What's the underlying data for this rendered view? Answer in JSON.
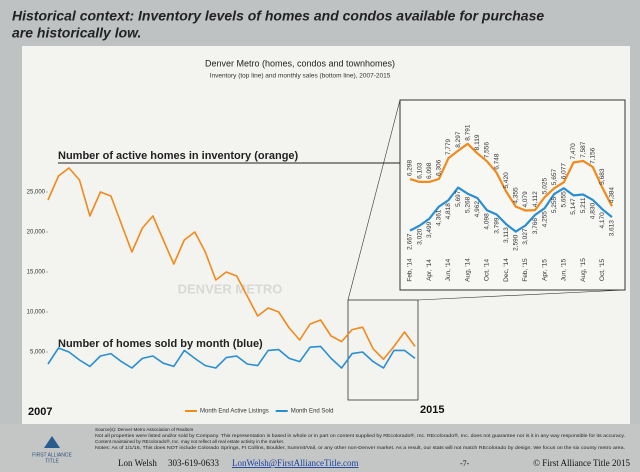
{
  "header": {
    "title": [
      "Historical context: Inventory levels of homes and condos available for purchase",
      "are historically low."
    ]
  },
  "chart_title": "Denver Metro (homes, condos and townhomes)",
  "chart_subtitle": "Inventory (top line) and monthly sales (bottom line), 2007-2015",
  "watermark": "DENVER METRO",
  "chart_data": [
    {
      "type": "line",
      "annotations": [
        "Number of active homes in inventory (orange)",
        "Number of homes sold by month (blue)"
      ],
      "year_labels": [
        "2007",
        "2015"
      ],
      "x": [
        2007,
        2007.25,
        2007.5,
        2007.75,
        2008,
        2008.25,
        2008.5,
        2008.75,
        2009,
        2009.25,
        2009.5,
        2009.75,
        2010,
        2010.25,
        2010.5,
        2010.75,
        2011,
        2011.25,
        2011.5,
        2011.75,
        2012,
        2012.25,
        2012.5,
        2012.75,
        2013,
        2013.25,
        2013.5,
        2013.75,
        2014,
        2014.25,
        2014.5,
        2014.75,
        2015,
        2015.25,
        2015.5,
        2015.75
      ],
      "xlim": [
        2007,
        2015.75
      ],
      "ylim": [
        0,
        28000
      ],
      "yticks": [
        {
          "value": 5000,
          "label": "5,000"
        },
        {
          "value": 10000,
          "label": "10,000"
        },
        {
          "value": 15000,
          "label": "15,000"
        },
        {
          "value": 20000,
          "label": "20,000"
        },
        {
          "value": 25000,
          "label": "25,000"
        }
      ],
      "legend": "bottom",
      "series": [
        {
          "name": "Month End Active Listings",
          "color": "#f08a1c",
          "values": [
            24000,
            27000,
            28000,
            26500,
            22000,
            25000,
            24500,
            21000,
            17500,
            20500,
            22000,
            19000,
            16000,
            19000,
            20000,
            17500,
            14000,
            15000,
            14500,
            12000,
            9500,
            10500,
            10000,
            8000,
            6500,
            8500,
            9000,
            7000,
            6300,
            7800,
            8100,
            5400,
            4100,
            5700,
            7500,
            5700
          ]
        },
        {
          "name": "Month End Sold",
          "color": "#2a8fd0",
          "values": [
            3500,
            5500,
            5000,
            4000,
            3200,
            4500,
            4800,
            3800,
            3000,
            4200,
            4500,
            3600,
            3200,
            5200,
            4200,
            3300,
            3000,
            4300,
            4500,
            3500,
            3300,
            5200,
            5300,
            4200,
            3800,
            5600,
            5700,
            4200,
            3000,
            4800,
            5000,
            3800,
            3000,
            5200,
            5200,
            4200
          ]
        }
      ]
    },
    {
      "type": "line",
      "categories": [
        "Feb, '14",
        null,
        "Apr, '14",
        null,
        "Jun, '14",
        null,
        "Aug, '14",
        null,
        "Oct, '14",
        null,
        "Dec, '14",
        null,
        "Feb, '15",
        null,
        "Apr, '15",
        null,
        "Jun, '15",
        null,
        "Aug, '15",
        null,
        "Oct, '15",
        null
      ],
      "ylim": [
        2000,
        9200
      ],
      "series": [
        {
          "color": "#f08a1c",
          "values": [
            6298,
            6103,
            6098,
            6306,
            7779,
            8297,
            8791,
            8119,
            7556,
            6748,
            5420,
            4355,
            4079,
            4112,
            5025,
            5657,
            6077,
            7470,
            7587,
            7156,
            5683,
            4384
          ],
          "value_labels": [
            "6,298",
            "6,103",
            "6,098",
            "6,306",
            "7,779",
            "8,297",
            "8,791",
            "8,119",
            "7,556",
            "6,748",
            "5,420",
            "4,355",
            "4,079",
            "4,112",
            "5,025",
            "5,657",
            "6,077",
            "7,470",
            "7,587",
            "7,156",
            "5,683",
            "4,384"
          ]
        },
        {
          "color": "#2a8fd0",
          "values": [
            2667,
            3020,
            3499,
            4361,
            4818,
            5697,
            5268,
            4962,
            4098,
            3799,
            3113,
            2590,
            3027,
            3766,
            4255,
            5255,
            5655,
            5147,
            5211,
            4830,
            4170,
            3613
          ],
          "value_labels": [
            "2,667",
            "3,020",
            "3,499",
            "4,361",
            "4,818",
            "5,697",
            "5,268",
            "4,962",
            "4,098",
            "3,799",
            "3,113",
            "2,590",
            "3,027",
            "3,766",
            "4,255",
            "5,255",
            "5,655",
            "5,147",
            "5,211",
            "4,830",
            "4,170",
            "3,613"
          ]
        }
      ]
    }
  ],
  "footer": {
    "source": [
      "Source(s): Denver Metro Association of Realtors",
      "Not all properties were listed and/or sold by Company. This representation is based in whole or in part on content supplied by REcolorado®, Inc. REcolorado®, Inc. does not guarantee nor is it in any way responsible for its accuracy.",
      "Content maintained by REcolorado®, Inc. may not reflect all real estate activity in the market.",
      "Notes: As of 1/1/16, This does NOT include Colorado Springs, Ft Collins, Boulder, Summit/Vail, or any other non-Denver market. As a result, our stats will not match REcolorado by design. We focus on the six county metro area."
    ],
    "logo": [
      "FIRST ALLIANCE",
      "TITLE"
    ],
    "name": "Lon Welsh",
    "phone": "303-619-0633",
    "email": "LonWelsh@FirstAllianceTitle.com",
    "page": "-7-",
    "copyright": "© First Alliance Title 2015"
  }
}
